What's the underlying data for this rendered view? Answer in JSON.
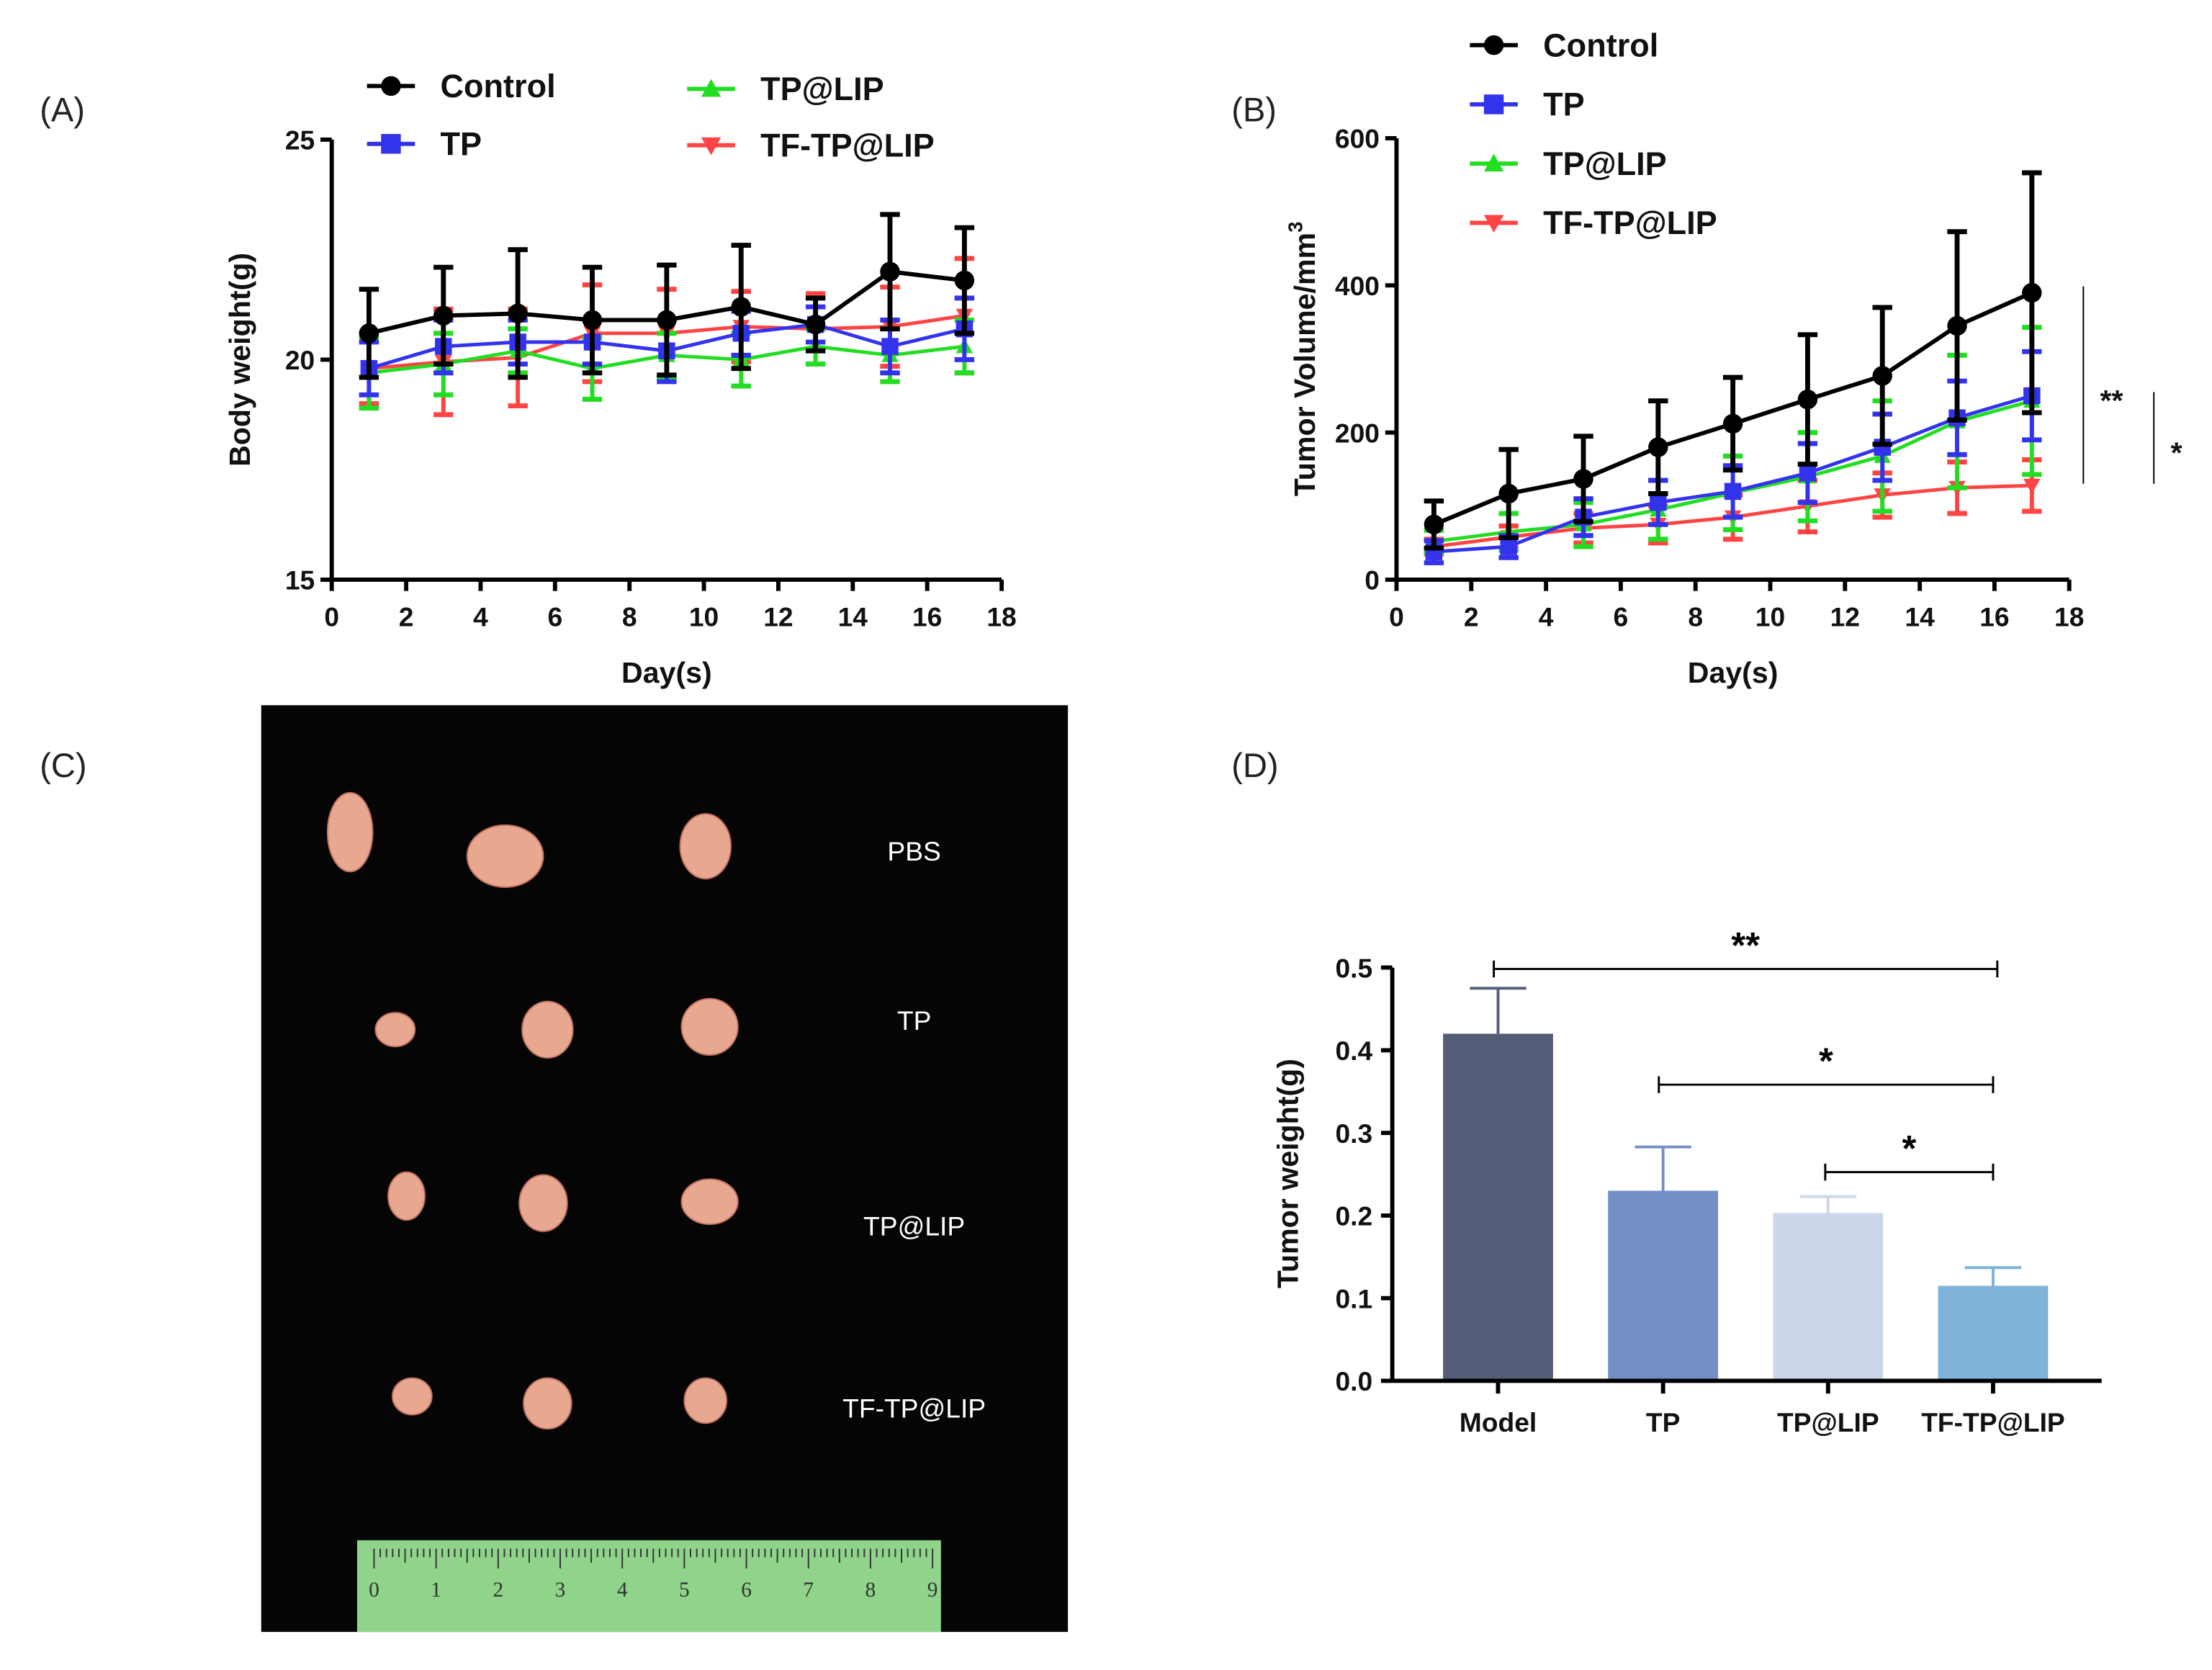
{
  "panels": {
    "A": "(A)",
    "B": "(B)",
    "C": "(C)",
    "D": "(D)"
  },
  "colors": {
    "Control": "#000000",
    "TP": "#3333ee",
    "TP@LIP": "#22dd22",
    "TF-TP@LIP": "#ff4444"
  },
  "chart_data": [
    {
      "id": "A",
      "type": "line",
      "xlabel": "Day(s)",
      "ylabel": "Body weight(g)",
      "xlim": [
        0,
        18
      ],
      "ylim": [
        15,
        25
      ],
      "xticks": [
        "0",
        "2",
        "4",
        "6",
        "8",
        "10",
        "12",
        "14",
        "16",
        "18"
      ],
      "yticks": [
        "15",
        "20",
        "25"
      ],
      "x": [
        1,
        3,
        5,
        7,
        9,
        11,
        13,
        15,
        17
      ],
      "legend": [
        "Control",
        "TP",
        "TP@LIP",
        "TF-TP@LIP"
      ],
      "series": [
        {
          "name": "Control",
          "marker": "circle",
          "values": [
            20.6,
            21.0,
            21.05,
            20.9,
            20.9,
            21.2,
            20.8,
            22.0,
            21.8
          ],
          "err": [
            1.0,
            1.1,
            1.45,
            1.2,
            1.25,
            1.4,
            0.6,
            1.3,
            1.2
          ]
        },
        {
          "name": "TP",
          "marker": "square",
          "values": [
            19.8,
            20.3,
            20.4,
            20.4,
            20.2,
            20.6,
            20.8,
            20.3,
            20.7
          ],
          "err": [
            0.6,
            0.6,
            0.5,
            0.5,
            0.7,
            0.5,
            0.4,
            0.6,
            0.7
          ]
        },
        {
          "name": "TP@LIP",
          "marker": "triangle-up",
          "values": [
            19.7,
            19.9,
            20.2,
            19.8,
            20.1,
            20.0,
            20.3,
            20.1,
            20.3
          ],
          "err": [
            0.8,
            0.7,
            0.5,
            0.7,
            0.5,
            0.6,
            0.4,
            0.6,
            0.6
          ]
        },
        {
          "name": "TF-TP@LIP",
          "marker": "triangle-down",
          "values": [
            19.8,
            19.95,
            20.05,
            20.6,
            20.6,
            20.75,
            20.7,
            20.75,
            21.0
          ],
          "err": [
            0.8,
            1.2,
            1.1,
            1.1,
            1.0,
            0.8,
            0.8,
            0.9,
            1.3
          ]
        }
      ]
    },
    {
      "id": "B",
      "type": "line",
      "xlabel": "Day(s)",
      "ylabel": "Tumor Volume/mm",
      "ylabel_sup": "3",
      "xlim": [
        0,
        18
      ],
      "ylim": [
        0,
        600
      ],
      "xticks": [
        "0",
        "2",
        "4",
        "6",
        "8",
        "10",
        "12",
        "14",
        "16",
        "18"
      ],
      "yticks": [
        "0",
        "200",
        "400",
        "600"
      ],
      "x": [
        1,
        3,
        5,
        7,
        9,
        11,
        13,
        15,
        17
      ],
      "legend": [
        "Control",
        "TP",
        "TP@LIP",
        "TF-TP@LIP"
      ],
      "series": [
        {
          "name": "Control",
          "marker": "circle",
          "values": [
            75,
            117,
            137,
            180,
            212,
            245,
            277,
            345,
            390
          ],
          "err": [
            32,
            60,
            58,
            63,
            63,
            88,
            93,
            128,
            163
          ]
        },
        {
          "name": "TP",
          "marker": "square",
          "values": [
            38,
            45,
            85,
            105,
            120,
            145,
            180,
            220,
            250
          ],
          "err": [
            15,
            15,
            25,
            30,
            35,
            40,
            45,
            50,
            60
          ]
        },
        {
          "name": "TP@LIP",
          "marker": "triangle-up",
          "values": [
            52,
            65,
            75,
            95,
            118,
            140,
            168,
            215,
            243
          ],
          "err": [
            15,
            25,
            30,
            40,
            50,
            60,
            75,
            90,
            100
          ]
        },
        {
          "name": "TF-TP@LIP",
          "marker": "triangle-down",
          "values": [
            45,
            58,
            70,
            75,
            85,
            100,
            115,
            125,
            128
          ],
          "err": [
            10,
            15,
            20,
            25,
            30,
            35,
            30,
            35,
            35
          ]
        }
      ],
      "significance": [
        {
          "label": "**"
        },
        {
          "label": "*"
        }
      ]
    },
    {
      "id": "D",
      "type": "bar",
      "ylabel": "Tumor weight(g)",
      "ylim": [
        0,
        0.5
      ],
      "yticks": [
        "0.0",
        "0.1",
        "0.2",
        "0.3",
        "0.4",
        "0.5"
      ],
      "categories": [
        "Model",
        "TP",
        "TP@LIP",
        "TF-TP@LIP"
      ],
      "values": [
        0.42,
        0.23,
        0.203,
        0.115
      ],
      "err": [
        0.055,
        0.053,
        0.02,
        0.022
      ],
      "bar_colors": [
        "#545c78",
        "#7390c4",
        "#ccd6ea",
        "#7fb3da"
      ],
      "significance": [
        {
          "from": 0,
          "to": 3,
          "label": "**"
        },
        {
          "from": 1,
          "to": 3,
          "label": "*"
        },
        {
          "from": 2,
          "to": 3,
          "label": "*"
        }
      ]
    }
  ],
  "photo": {
    "rows": [
      "PBS",
      "TP",
      "TP@LIP",
      "TF-TP@LIP"
    ],
    "ruler": [
      "0",
      "1",
      "2",
      "3",
      "4",
      "5",
      "6",
      "7",
      "8",
      "9"
    ]
  }
}
